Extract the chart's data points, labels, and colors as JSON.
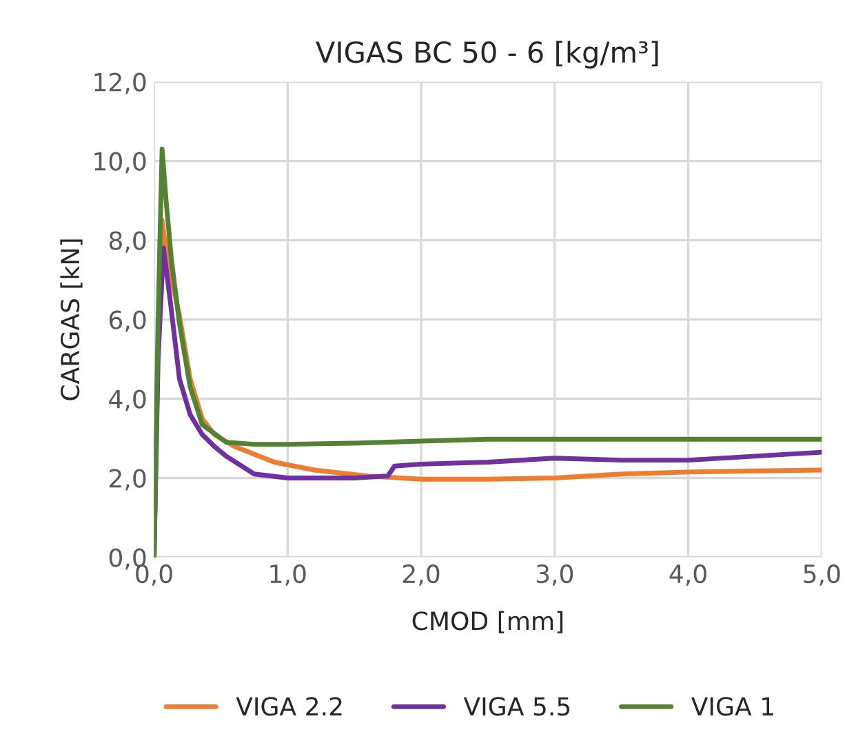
{
  "chart_data": {
    "type": "line",
    "title": "VIGAS BC 50 - 6 [kg/m³]",
    "xlabel": "CMOD [mm]",
    "ylabel": "CARGAS [kN]",
    "xlim": [
      0,
      5
    ],
    "ylim": [
      0,
      12
    ],
    "xticks": [
      {
        "value": 0,
        "label": "0,0"
      },
      {
        "value": 1,
        "label": "1,0"
      },
      {
        "value": 2,
        "label": "2,0"
      },
      {
        "value": 3,
        "label": "3,0"
      },
      {
        "value": 4,
        "label": "4,0"
      },
      {
        "value": 5,
        "label": "5,0"
      }
    ],
    "yticks": [
      {
        "value": 0,
        "label": "0,0"
      },
      {
        "value": 2,
        "label": "2,0"
      },
      {
        "value": 4,
        "label": "4,0"
      },
      {
        "value": 6,
        "label": "6,0"
      },
      {
        "value": 8,
        "label": "8,0"
      },
      {
        "value": 10,
        "label": "10,0"
      },
      {
        "value": 12,
        "label": "12,0"
      }
    ],
    "grid": true,
    "legend": "bottom",
    "marker": "none",
    "line_style": "solid",
    "series": [
      {
        "name": "VIGA 2.2",
        "color": "#ed7d31",
        "x": [
          0,
          0.03,
          0.06,
          0.1,
          0.19,
          0.27,
          0.36,
          0.45,
          0.6,
          0.75,
          0.9,
          1.2,
          1.6,
          2.0,
          2.5,
          3.0,
          3.5,
          4.0,
          4.5,
          5.0
        ],
        "values": [
          0,
          5.5,
          8.5,
          7.5,
          6.1,
          4.5,
          3.5,
          3.1,
          2.8,
          2.6,
          2.4,
          2.2,
          2.05,
          1.97,
          1.97,
          2.0,
          2.1,
          2.15,
          2.18,
          2.2
        ]
      },
      {
        "name": "VIGA 5.5",
        "color": "#7030a0",
        "x": [
          0,
          0.03,
          0.07,
          0.12,
          0.19,
          0.27,
          0.36,
          0.45,
          0.54,
          0.75,
          1.0,
          1.5,
          1.75,
          1.8,
          2.0,
          2.5,
          3.0,
          3.5,
          4.0,
          4.5,
          5.0
        ],
        "values": [
          0,
          5.0,
          7.8,
          6.5,
          4.5,
          3.6,
          3.1,
          2.8,
          2.55,
          2.1,
          2.0,
          2.0,
          2.05,
          2.3,
          2.35,
          2.4,
          2.5,
          2.45,
          2.45,
          2.55,
          2.65
        ]
      },
      {
        "name": "VIGA 1",
        "color": "#548235",
        "x": [
          0,
          0.03,
          0.06,
          0.09,
          0.13,
          0.19,
          0.27,
          0.36,
          0.54,
          0.75,
          1.0,
          1.5,
          2.0,
          2.5,
          3.0,
          4.0,
          5.0
        ],
        "values": [
          0,
          6.0,
          10.3,
          9.0,
          7.5,
          5.9,
          4.3,
          3.35,
          2.9,
          2.85,
          2.85,
          2.88,
          2.93,
          2.98,
          2.98,
          2.98,
          2.98
        ]
      }
    ]
  }
}
